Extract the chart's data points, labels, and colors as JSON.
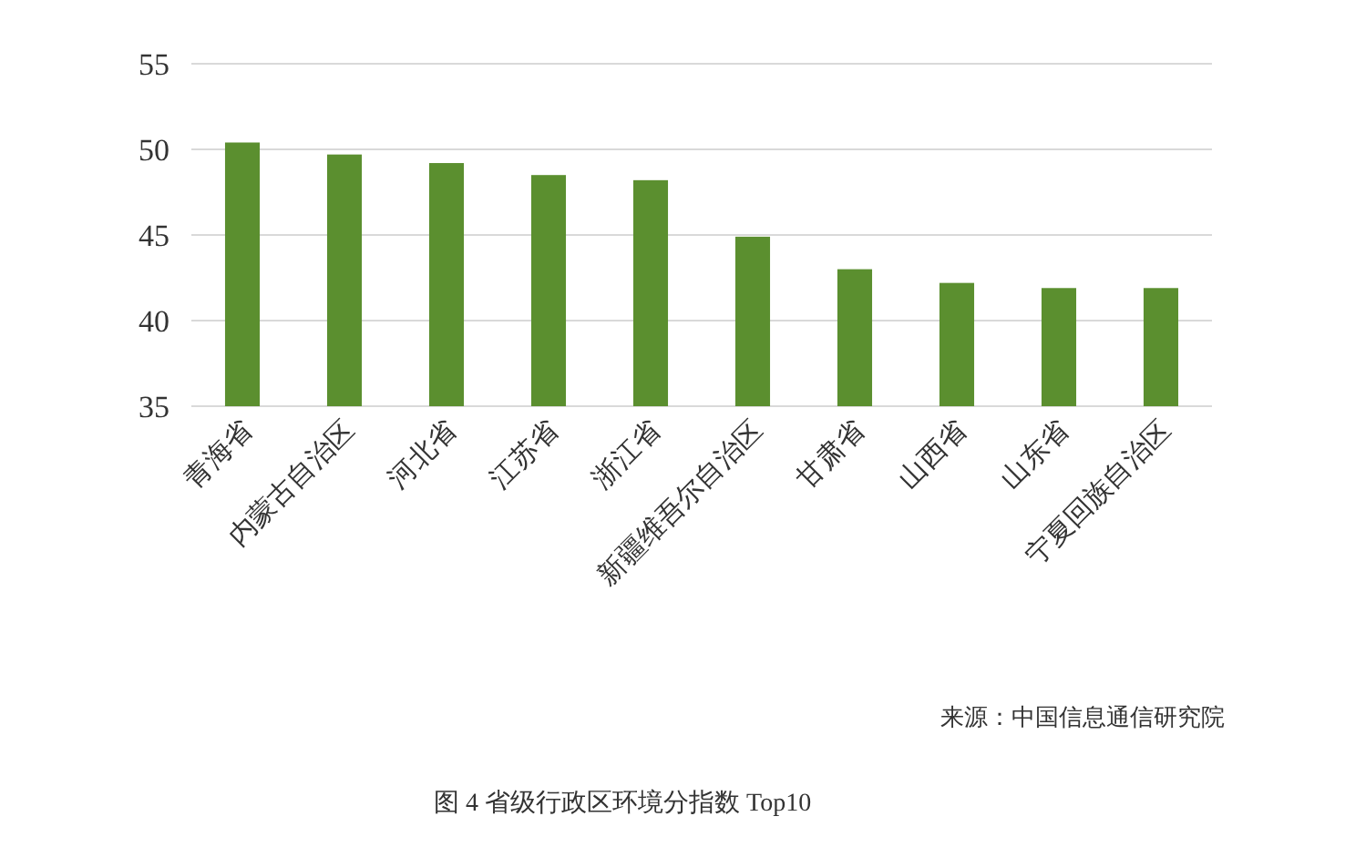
{
  "chart_data": {
    "type": "bar",
    "title": "图 4  省级行政区环境分指数 Top10",
    "categories": [
      "青海省",
      "内蒙古自治区",
      "河北省",
      "江苏省",
      "浙江省",
      "新疆维吾尔自治区",
      "甘肃省",
      "山西省",
      "山东省",
      "宁夏回族自治区"
    ],
    "values": [
      50.4,
      49.7,
      49.2,
      48.5,
      48.2,
      44.9,
      43.0,
      42.2,
      41.9,
      41.9
    ],
    "color": "#5b8f2f",
    "ylim": [
      35,
      55
    ],
    "yticks": [
      35,
      40,
      45,
      50,
      55
    ],
    "grid": "y",
    "annotations": [
      "来源：中国信息通信研究院"
    ]
  }
}
